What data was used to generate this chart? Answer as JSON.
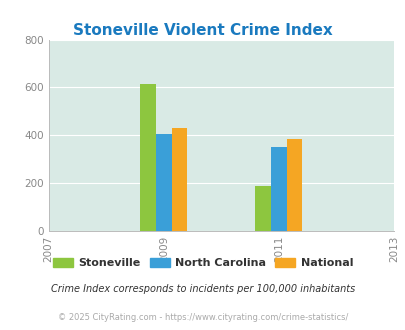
{
  "title": "Stoneville Violent Crime Index",
  "title_color": "#1a7abf",
  "years": [
    2009,
    2011
  ],
  "stoneville": [
    615,
    190
  ],
  "north_carolina": [
    405,
    350
  ],
  "national": [
    430,
    385
  ],
  "bar_colors": {
    "stoneville": "#8dc63f",
    "north_carolina": "#3a9fd8",
    "national": "#f5a623"
  },
  "xlim": [
    2007,
    2013
  ],
  "ylim": [
    0,
    800
  ],
  "yticks": [
    0,
    200,
    400,
    600,
    800
  ],
  "xticks": [
    2007,
    2009,
    2011,
    2013
  ],
  "bg_color": "#d9eae5",
  "legend_labels": [
    "Stoneville",
    "North Carolina",
    "National"
  ],
  "footnote1": "Crime Index corresponds to incidents per 100,000 inhabitants",
  "footnote2": "© 2025 CityRating.com - https://www.cityrating.com/crime-statistics/",
  "bar_width": 0.27
}
